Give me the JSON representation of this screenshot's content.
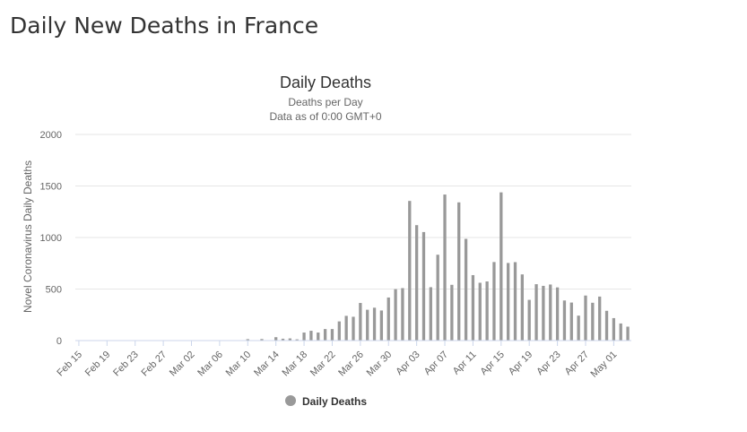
{
  "page": {
    "heading": "Daily New Deaths in France"
  },
  "chart_data": {
    "type": "bar",
    "title": "Daily Deaths",
    "subtitle_lines": [
      "Deaths per Day",
      "Data as of 0:00 GMT+0"
    ],
    "xlabel": "",
    "ylabel": "Novel Coronavirus Daily Deaths",
    "ylim": [
      0,
      2000
    ],
    "yticks": [
      0,
      500,
      1000,
      1500,
      2000
    ],
    "grid": true,
    "legend_position": "bottom-center",
    "color": "#999999",
    "x_tick_labels": [
      "Feb 15",
      "Feb 19",
      "Feb 23",
      "Feb 27",
      "Mar 02",
      "Mar 06",
      "Mar 10",
      "Mar 14",
      "Mar 18",
      "Mar 22",
      "Mar 26",
      "Mar 30",
      "Apr 03",
      "Apr 07",
      "Apr 11",
      "Apr 15",
      "Apr 19",
      "Apr 23",
      "Apr 27",
      "May 01"
    ],
    "categories": [
      "Feb 15",
      "Feb 16",
      "Feb 17",
      "Feb 18",
      "Feb 19",
      "Feb 20",
      "Feb 21",
      "Feb 22",
      "Feb 23",
      "Feb 24",
      "Feb 25",
      "Feb 26",
      "Feb 27",
      "Feb 28",
      "Feb 29",
      "Mar 01",
      "Mar 02",
      "Mar 03",
      "Mar 04",
      "Mar 05",
      "Mar 06",
      "Mar 07",
      "Mar 08",
      "Mar 09",
      "Mar 10",
      "Mar 11",
      "Mar 12",
      "Mar 13",
      "Mar 14",
      "Mar 15",
      "Mar 16",
      "Mar 17",
      "Mar 18",
      "Mar 19",
      "Mar 20",
      "Mar 21",
      "Mar 22",
      "Mar 23",
      "Mar 24",
      "Mar 25",
      "Mar 26",
      "Mar 27",
      "Mar 28",
      "Mar 29",
      "Mar 30",
      "Mar 31",
      "Apr 01",
      "Apr 02",
      "Apr 03",
      "Apr 04",
      "Apr 05",
      "Apr 06",
      "Apr 07",
      "Apr 08",
      "Apr 09",
      "Apr 10",
      "Apr 11",
      "Apr 12",
      "Apr 13",
      "Apr 14",
      "Apr 15",
      "Apr 16",
      "Apr 17",
      "Apr 18",
      "Apr 19",
      "Apr 20",
      "Apr 21",
      "Apr 22",
      "Apr 23",
      "Apr 24",
      "Apr 25",
      "Apr 26",
      "Apr 27",
      "Apr 28",
      "Apr 29",
      "Apr 30",
      "May 01",
      "May 02",
      "May 03"
    ],
    "series": [
      {
        "name": "Daily Deaths",
        "values": [
          1,
          0,
          0,
          0,
          0,
          0,
          0,
          0,
          0,
          0,
          0,
          0,
          0,
          0,
          0,
          1,
          0,
          1,
          0,
          2,
          2,
          3,
          3,
          0,
          14,
          0,
          15,
          0,
          33,
          18,
          21,
          12,
          78,
          95,
          78,
          112,
          112,
          186,
          240,
          231,
          365,
          299,
          319,
          292,
          418,
          499,
          509,
          1355,
          1120,
          1053,
          518,
          833,
          1417,
          541,
          1341,
          987,
          635,
          561,
          574,
          762,
          1438,
          753,
          761,
          642,
          395,
          547,
          531,
          544,
          516,
          389,
          369,
          242,
          437,
          367,
          427,
          289,
          218,
          166,
          135
        ]
      }
    ]
  }
}
